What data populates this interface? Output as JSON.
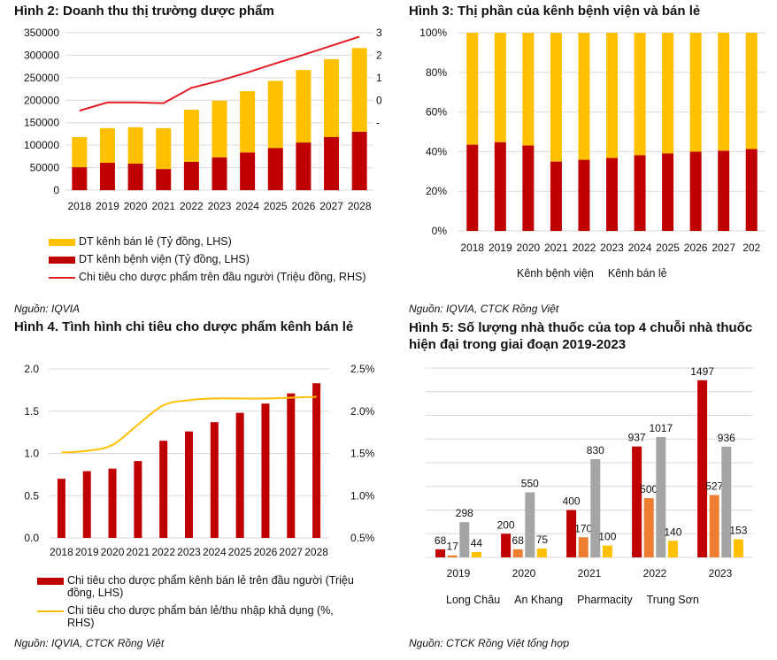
{
  "colors": {
    "red": "#c00000",
    "yellow": "#ffc000",
    "orange": "#ed7d31",
    "gray": "#a5a5a5",
    "line_red": "#e31b23",
    "line_yellow": "#ffc000",
    "grid": "#d9d9d9"
  },
  "fig2": {
    "title": "Hình 2: Doanh thu thị trường dược phẩm",
    "source": "Nguồn: IQVIA",
    "legend": [
      "DT kênh bán lẻ (Tỷ đồng, LHS)",
      "DT kênh bệnh viện (Tỷ đồng, LHS)",
      "Chi tiêu cho dược phẩm trên đầu người (Triệu đồng, RHS)"
    ]
  },
  "fig3": {
    "title": "Hình 3: Thị phần của kênh bệnh viện và bán lẻ",
    "source": "Nguồn: IQVIA, CTCK Rồng Việt",
    "legend": [
      "Kênh bệnh viện",
      "Kênh bán lẻ"
    ]
  },
  "fig4": {
    "title": "Hình 4. Tình hình chi tiêu cho dược phẩm kênh bán lẻ",
    "source": "Nguồn: IQVIA, CTCK Rồng Việt",
    "legend": [
      "Chi tiêu cho dược phẩm kênh bán lẻ trên đầu người (Triệu đồng, LHS)",
      "Chi tiêu cho dược phẩm bán lẻ/thu nhập khả dụng (%, RHS)"
    ]
  },
  "fig5": {
    "title": "Hình 5: Số lượng nhà thuốc của top 4 chuỗi nhà thuốc hiện đại trong giai đoạn 2019-2023",
    "source": "Nguồn: CTCK Rồng Việt tổng hợp",
    "legend": [
      "Long Châu",
      "An Khang",
      "Pharmacity",
      "Trung Sơn"
    ]
  },
  "chart_data": [
    {
      "id": "fig2",
      "type": "bar",
      "stacked": true,
      "title": "Hình 2: Doanh thu thị trường dược phẩm",
      "categories": [
        "2018",
        "2019",
        "2020",
        "2021",
        "2022",
        "2023",
        "2024",
        "2025",
        "2026",
        "2027",
        "2028"
      ],
      "series": [
        {
          "name": "DT kênh bệnh viện (Tỷ đồng, LHS)",
          "axis": "left",
          "values": [
            51000,
            61000,
            59000,
            47000,
            63000,
            73000,
            84000,
            94000,
            106000,
            118000,
            130000
          ]
        },
        {
          "name": "DT kênh bán lẻ (Tỷ đồng, LHS)",
          "axis": "left",
          "values": [
            67000,
            77000,
            81000,
            91000,
            116000,
            126000,
            136000,
            149000,
            161000,
            173000,
            186000
          ]
        },
        {
          "name": "Chi tiêu cho dược phẩm trên đầu người (Triệu đồng, RHS)",
          "axis": "right",
          "type": "line",
          "values": [
            1.02,
            1.23,
            1.23,
            1.21,
            1.6,
            1.78,
            1.99,
            2.22,
            2.44,
            2.67,
            2.9
          ]
        }
      ],
      "ylim": [
        0,
        350000
      ],
      "yticks": [
        "350000",
        "300000",
        "250000",
        "200000",
        "150000",
        "100000",
        "50000",
        "0"
      ],
      "ylim_right": [
        -1,
        3
      ],
      "yticks_right": [
        "3",
        "2",
        "1",
        "0",
        "-"
      ],
      "grid": true,
      "legend_position": "bottom"
    },
    {
      "id": "fig3",
      "type": "bar",
      "stacked": true,
      "percent": true,
      "title": "Hình 3: Thị phần của kênh bệnh viện và bán lẻ",
      "categories": [
        "2018",
        "2019",
        "2020",
        "2021",
        "2022",
        "2023",
        "2024",
        "2025",
        "2026",
        "2027",
        "202"
      ],
      "series": [
        {
          "name": "Kênh bệnh viện",
          "values": [
            43.5,
            44.8,
            43.1,
            35.0,
            35.9,
            36.8,
            38.2,
            39.1,
            40.0,
            40.5,
            41.3
          ]
        },
        {
          "name": "Kênh bán lẻ",
          "values": [
            56.5,
            55.2,
            56.9,
            65.0,
            64.1,
            63.2,
            61.8,
            60.9,
            60.0,
            59.5,
            58.7
          ]
        }
      ],
      "ylim": [
        0,
        100
      ],
      "yticks": [
        "100%",
        "80%",
        "60%",
        "40%",
        "20%",
        "0%"
      ],
      "grid": true,
      "legend_position": "bottom"
    },
    {
      "id": "fig4",
      "type": "bar",
      "title": "Hình 4. Tình hình chi tiêu cho dược phẩm kênh bán lẻ",
      "categories": [
        "2018",
        "2019",
        "2020",
        "2021",
        "2022",
        "2023",
        "2024",
        "2025",
        "2026",
        "2027",
        "2028"
      ],
      "series": [
        {
          "name": "Chi tiêu cho dược phẩm kênh bán lẻ trên đầu người (Triệu đồng, LHS)",
          "axis": "left",
          "values": [
            0.7,
            0.79,
            0.82,
            0.91,
            1.15,
            1.26,
            1.37,
            1.48,
            1.59,
            1.71,
            1.83
          ]
        },
        {
          "name": "Chi tiêu cho dược phẩm bán lẻ/thu nhập khả dụng (%, RHS)",
          "axis": "right",
          "type": "line",
          "values": [
            1.51,
            1.53,
            1.6,
            1.84,
            2.07,
            2.13,
            2.15,
            2.15,
            2.15,
            2.16,
            2.17
          ]
        }
      ],
      "ylim": [
        0,
        2.0
      ],
      "yticks": [
        "2.0",
        "1.5",
        "1.0",
        "0.5",
        "0.0"
      ],
      "ylim_right": [
        0.5,
        2.5
      ],
      "yticks_right": [
        "2.5%",
        "2.0%",
        "1.5%",
        "1.0%",
        "0.5%"
      ],
      "grid": true,
      "legend_position": "bottom"
    },
    {
      "id": "fig5",
      "type": "bar",
      "title": "Hình 5: Số lượng nhà thuốc của top 4 chuỗi nhà thuốc hiện đại trong giai đoạn 2019-2023",
      "categories": [
        "2019",
        "2020",
        "2021",
        "2022",
        "2023"
      ],
      "series": [
        {
          "name": "Long Châu",
          "values": [
            68,
            200,
            400,
            937,
            1497
          ]
        },
        {
          "name": "An Khang",
          "values": [
            17,
            68,
            170,
            500,
            527
          ]
        },
        {
          "name": "Pharmacity",
          "values": [
            298,
            550,
            830,
            1017,
            936
          ]
        },
        {
          "name": "Trung Sơn",
          "values": [
            44,
            75,
            100,
            140,
            153
          ]
        }
      ],
      "ylim": [
        0,
        1600
      ],
      "grid": true,
      "data_labels": true,
      "legend_position": "bottom"
    }
  ]
}
